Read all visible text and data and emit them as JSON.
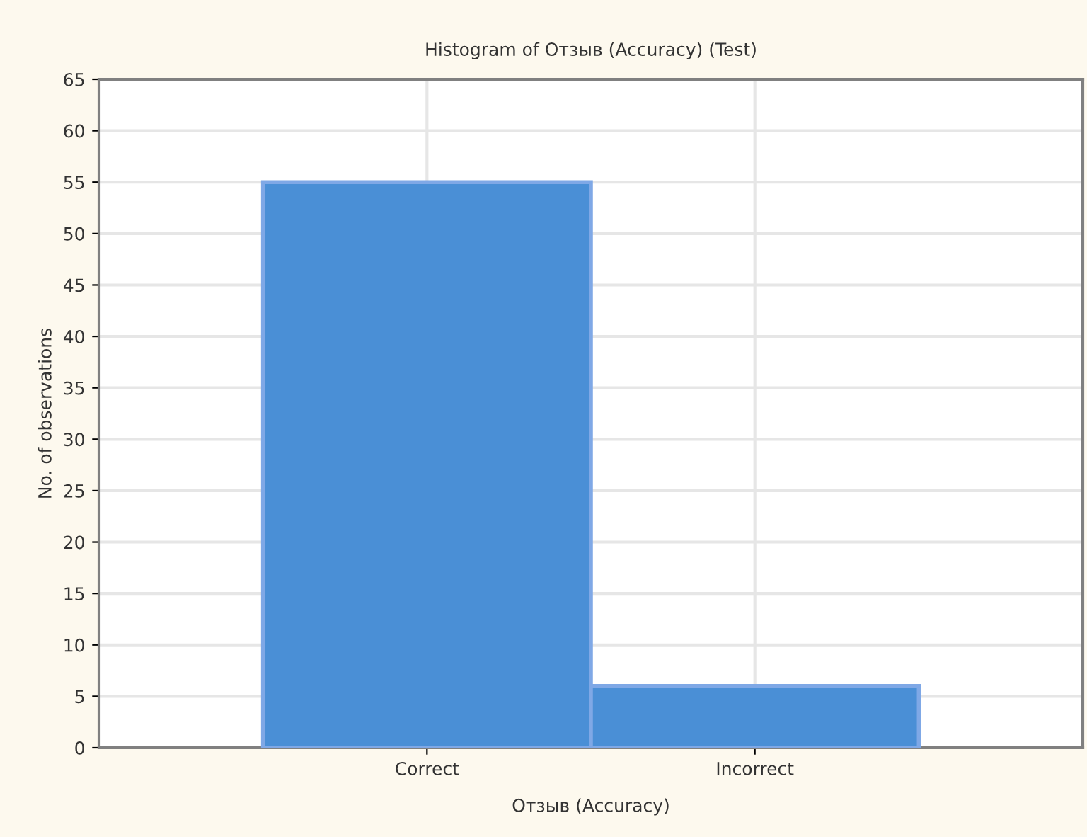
{
  "chart_data": {
    "type": "bar",
    "title": "Histogram of Отзыв (Accuracy) (Test)",
    "xlabel": "Отзыв (Accuracy)",
    "ylabel": "No. of observations",
    "categories": [
      "Correct",
      "Incorrect"
    ],
    "values": [
      55,
      6
    ],
    "color": "#4a8fd6",
    "ylim": [
      0,
      65
    ],
    "yticks": [
      0,
      5,
      10,
      15,
      20,
      25,
      30,
      35,
      40,
      45,
      50,
      55,
      60,
      65
    ],
    "grid": true
  }
}
